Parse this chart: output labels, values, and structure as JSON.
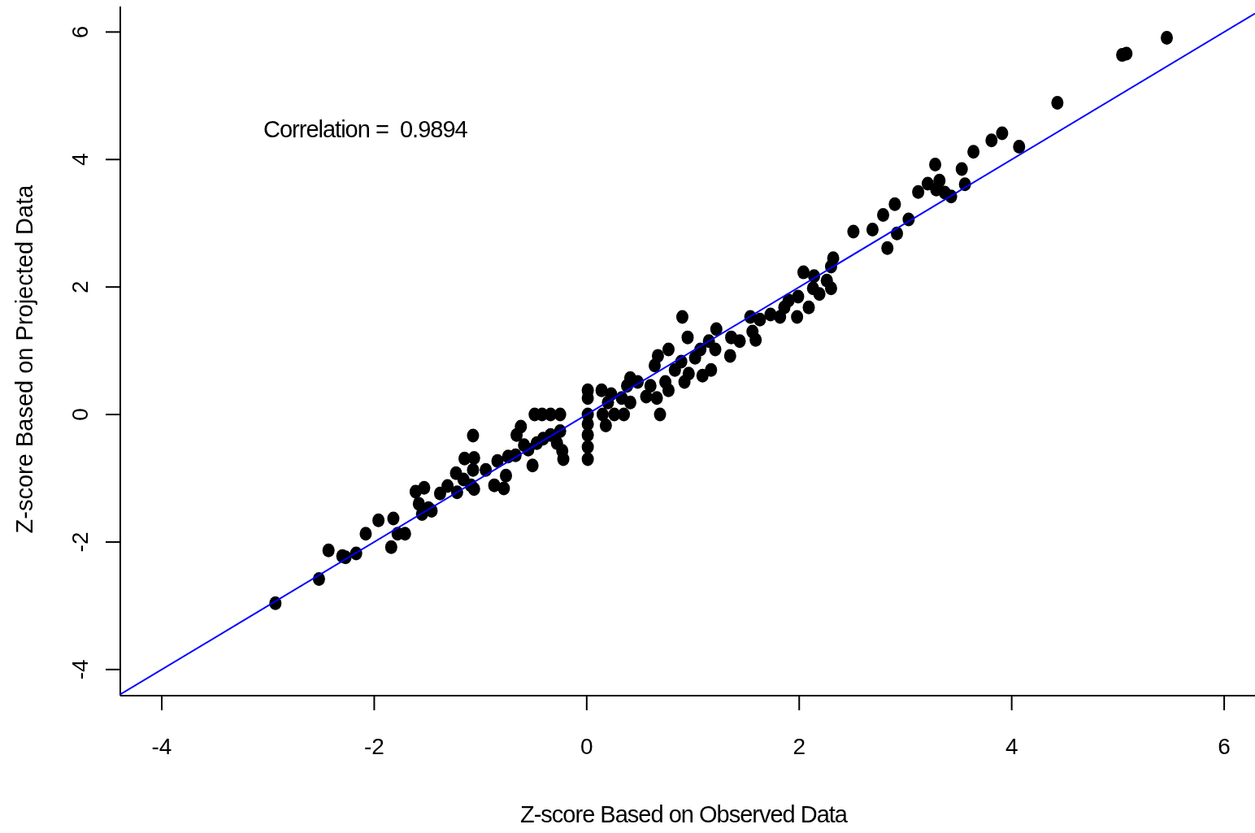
{
  "chart_data": {
    "type": "scatter",
    "xlabel": "Z-score Based on Observed Data",
    "ylabel": "Z-score Based on Projected Data",
    "annotations": [
      "Correlation =  0.9894"
    ],
    "xlim": [
      -4.39,
      6.29
    ],
    "ylim": [
      -4.41,
      6.4
    ],
    "xticks": [
      -4,
      -2,
      0,
      2,
      4,
      6
    ],
    "yticks": [
      -4,
      -2,
      0,
      2,
      4,
      6
    ],
    "grid": false,
    "marker": "circle",
    "series": [
      {
        "type": "scatter",
        "color": "#000000",
        "x": [
          -2.93,
          -2.52,
          -2.43,
          -2.3,
          -2.27,
          -2.17,
          -2.08,
          -1.96,
          -1.84,
          -1.82,
          -1.78,
          -1.71,
          -1.61,
          -1.58,
          -1.55,
          -1.53,
          -1.49,
          -1.46,
          -1.38,
          -1.31,
          -1.23,
          -1.22,
          -1.16,
          -1.15,
          -1.09,
          -1.07,
          -1.06,
          -1.07,
          -1.06,
          -0.95,
          -0.87,
          -0.84,
          -0.78,
          -0.76,
          -0.74,
          -0.67,
          -0.66,
          -0.62,
          -0.59,
          -0.55,
          -0.51,
          -0.49,
          -0.47,
          -0.42,
          -0.41,
          -0.34,
          -0.34,
          -0.28,
          -0.25,
          -0.25,
          -0.23,
          -0.22,
          0.01,
          0.01,
          0.01,
          0.01,
          0.01,
          0.01,
          0.01,
          0.14,
          0.15,
          0.18,
          0.2,
          0.23,
          0.26,
          0.33,
          0.35,
          0.38,
          0.41,
          0.41,
          0.48,
          0.56,
          0.6,
          0.64,
          0.66,
          0.67,
          0.69,
          0.74,
          0.77,
          0.77,
          0.83,
          0.89,
          0.9,
          0.92,
          0.95,
          0.96,
          1.02,
          1.07,
          1.09,
          1.15,
          1.17,
          1.21,
          1.22,
          1.35,
          1.36,
          1.44,
          1.54,
          1.56,
          1.59,
          1.63,
          1.73,
          1.82,
          1.86,
          1.9,
          1.98,
          1.99,
          2.04,
          2.09,
          2.13,
          2.14,
          2.19,
          2.26,
          2.3,
          2.3,
          2.32,
          2.51,
          2.69,
          2.79,
          2.83,
          2.9,
          2.92,
          3.03,
          3.12,
          3.21,
          3.28,
          3.32,
          3.29,
          3.37,
          3.43,
          3.53,
          3.56,
          3.64,
          3.81,
          3.91,
          4.07,
          4.43,
          5.04,
          5.08,
          5.46
        ],
        "values": [
          -2.96,
          -2.58,
          -2.13,
          -2.22,
          -2.24,
          -2.18,
          -1.87,
          -1.66,
          -2.08,
          -1.63,
          -1.87,
          -1.87,
          -1.21,
          -1.4,
          -1.56,
          -1.15,
          -1.47,
          -1.51,
          -1.24,
          -1.12,
          -0.92,
          -1.22,
          -1.02,
          -0.69,
          -1.11,
          -0.87,
          -1.17,
          -0.33,
          -0.68,
          -0.87,
          -1.11,
          -0.73,
          -1.16,
          -0.96,
          -0.66,
          -0.64,
          -0.32,
          -0.19,
          -0.48,
          -0.55,
          -0.8,
          0,
          -0.45,
          0,
          -0.38,
          0,
          -0.32,
          -0.45,
          0,
          -0.26,
          -0.57,
          -0.7,
          0.38,
          0.26,
          0,
          -0.15,
          -0.32,
          -0.51,
          -0.7,
          0.38,
          0,
          -0.17,
          0.19,
          0.32,
          0,
          0.26,
          0,
          0.45,
          0.57,
          0.19,
          0.51,
          0.28,
          0.45,
          0.77,
          0.26,
          0.92,
          0,
          0.51,
          1.02,
          0.38,
          0.7,
          0.83,
          1.53,
          0.51,
          1.21,
          0.64,
          0.89,
          1.02,
          0.61,
          1.15,
          0.7,
          1.02,
          1.34,
          0.92,
          1.21,
          1.15,
          1.53,
          1.3,
          1.17,
          1.49,
          1.57,
          1.53,
          1.68,
          1.79,
          1.53,
          1.85,
          2.23,
          1.68,
          1.98,
          2.17,
          1.89,
          2.1,
          1.98,
          2.32,
          2.45,
          2.87,
          2.9,
          3.13,
          2.61,
          3.3,
          2.84,
          3.06,
          3.49,
          3.62,
          3.92,
          3.67,
          3.53,
          3.48,
          3.42,
          3.85,
          3.61,
          4.12,
          4.3,
          4.41,
          4.2,
          4.89,
          5.64,
          5.66,
          5.91
        ]
      },
      {
        "type": "line",
        "color": "#0000ff",
        "marker": "none",
        "line_style": "solid",
        "x": [
          -4.39,
          6.29
        ],
        "values": [
          -4.39,
          6.29
        ]
      }
    ]
  }
}
